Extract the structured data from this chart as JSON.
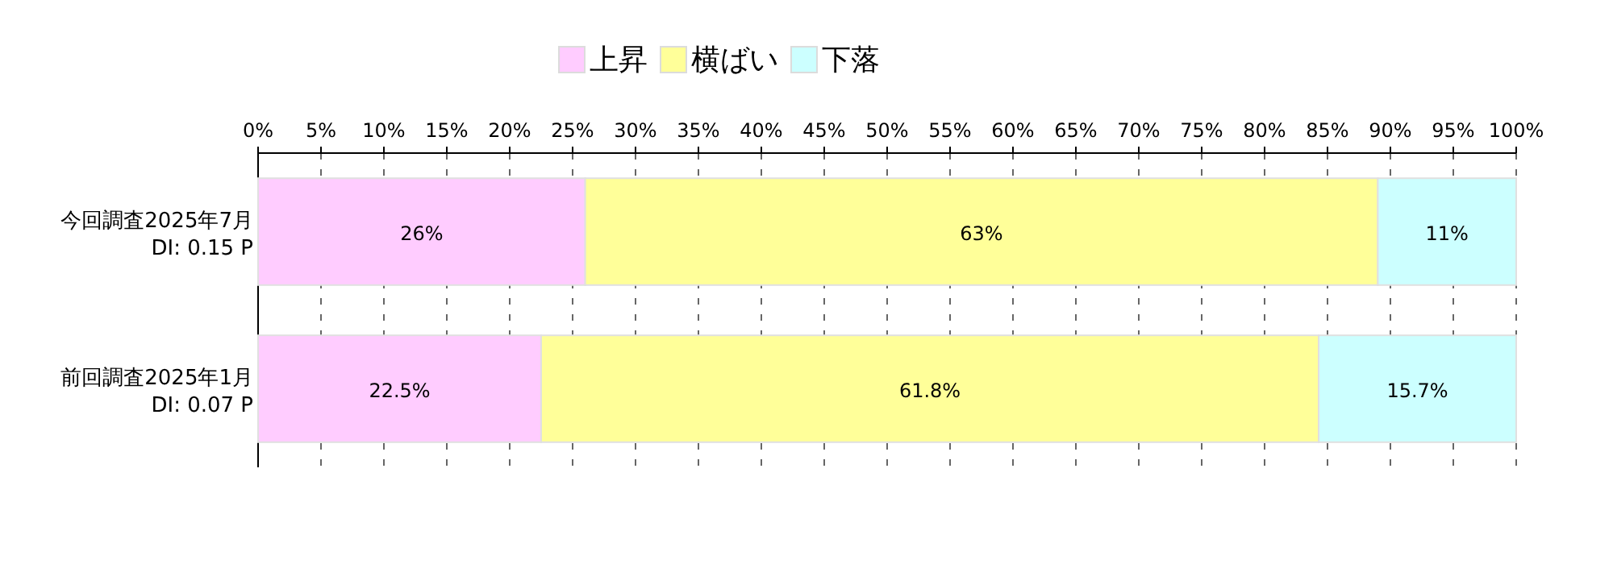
{
  "chart_data": {
    "type": "bar",
    "orientation": "horizontal",
    "stacked": true,
    "categories": [
      "今回調査2025年7月\nDI: 0.15 P",
      "前回調査2025年1月\nDI: 0.07 P"
    ],
    "series": [
      {
        "name": "上昇",
        "color": "#ffccff",
        "values": [
          26,
          22.5
        ],
        "value_labels": [
          "26%",
          "22.5%"
        ]
      },
      {
        "name": "横ばい",
        "color": "#ffff99",
        "values": [
          63,
          61.8
        ],
        "value_labels": [
          "63%",
          "61.8%"
        ]
      },
      {
        "name": "下落",
        "color": "#ccffff",
        "values": [
          11,
          15.7
        ],
        "value_labels": [
          "11%",
          "15.7%"
        ]
      }
    ],
    "xlim": [
      0,
      100
    ],
    "xticks": [
      {
        "value": 0,
        "label": "0%"
      },
      {
        "value": 5,
        "label": "5%"
      },
      {
        "value": 10,
        "label": "10%"
      },
      {
        "value": 15,
        "label": "15%"
      },
      {
        "value": 20,
        "label": "20%"
      },
      {
        "value": 25,
        "label": "25%"
      },
      {
        "value": 30,
        "label": "30%"
      },
      {
        "value": 35,
        "label": "35%"
      },
      {
        "value": 40,
        "label": "40%"
      },
      {
        "value": 45,
        "label": "45%"
      },
      {
        "value": 50,
        "label": "50%"
      },
      {
        "value": 55,
        "label": "55%"
      },
      {
        "value": 60,
        "label": "60%"
      },
      {
        "value": 65,
        "label": "65%"
      },
      {
        "value": 70,
        "label": "70%"
      },
      {
        "value": 75,
        "label": "75%"
      },
      {
        "value": 80,
        "label": "80%"
      },
      {
        "value": 85,
        "label": "85%"
      },
      {
        "value": 90,
        "label": "90%"
      },
      {
        "value": 95,
        "label": "95%"
      },
      {
        "value": 100,
        "label": "100%"
      }
    ],
    "grid": "x",
    "legend": "top"
  }
}
